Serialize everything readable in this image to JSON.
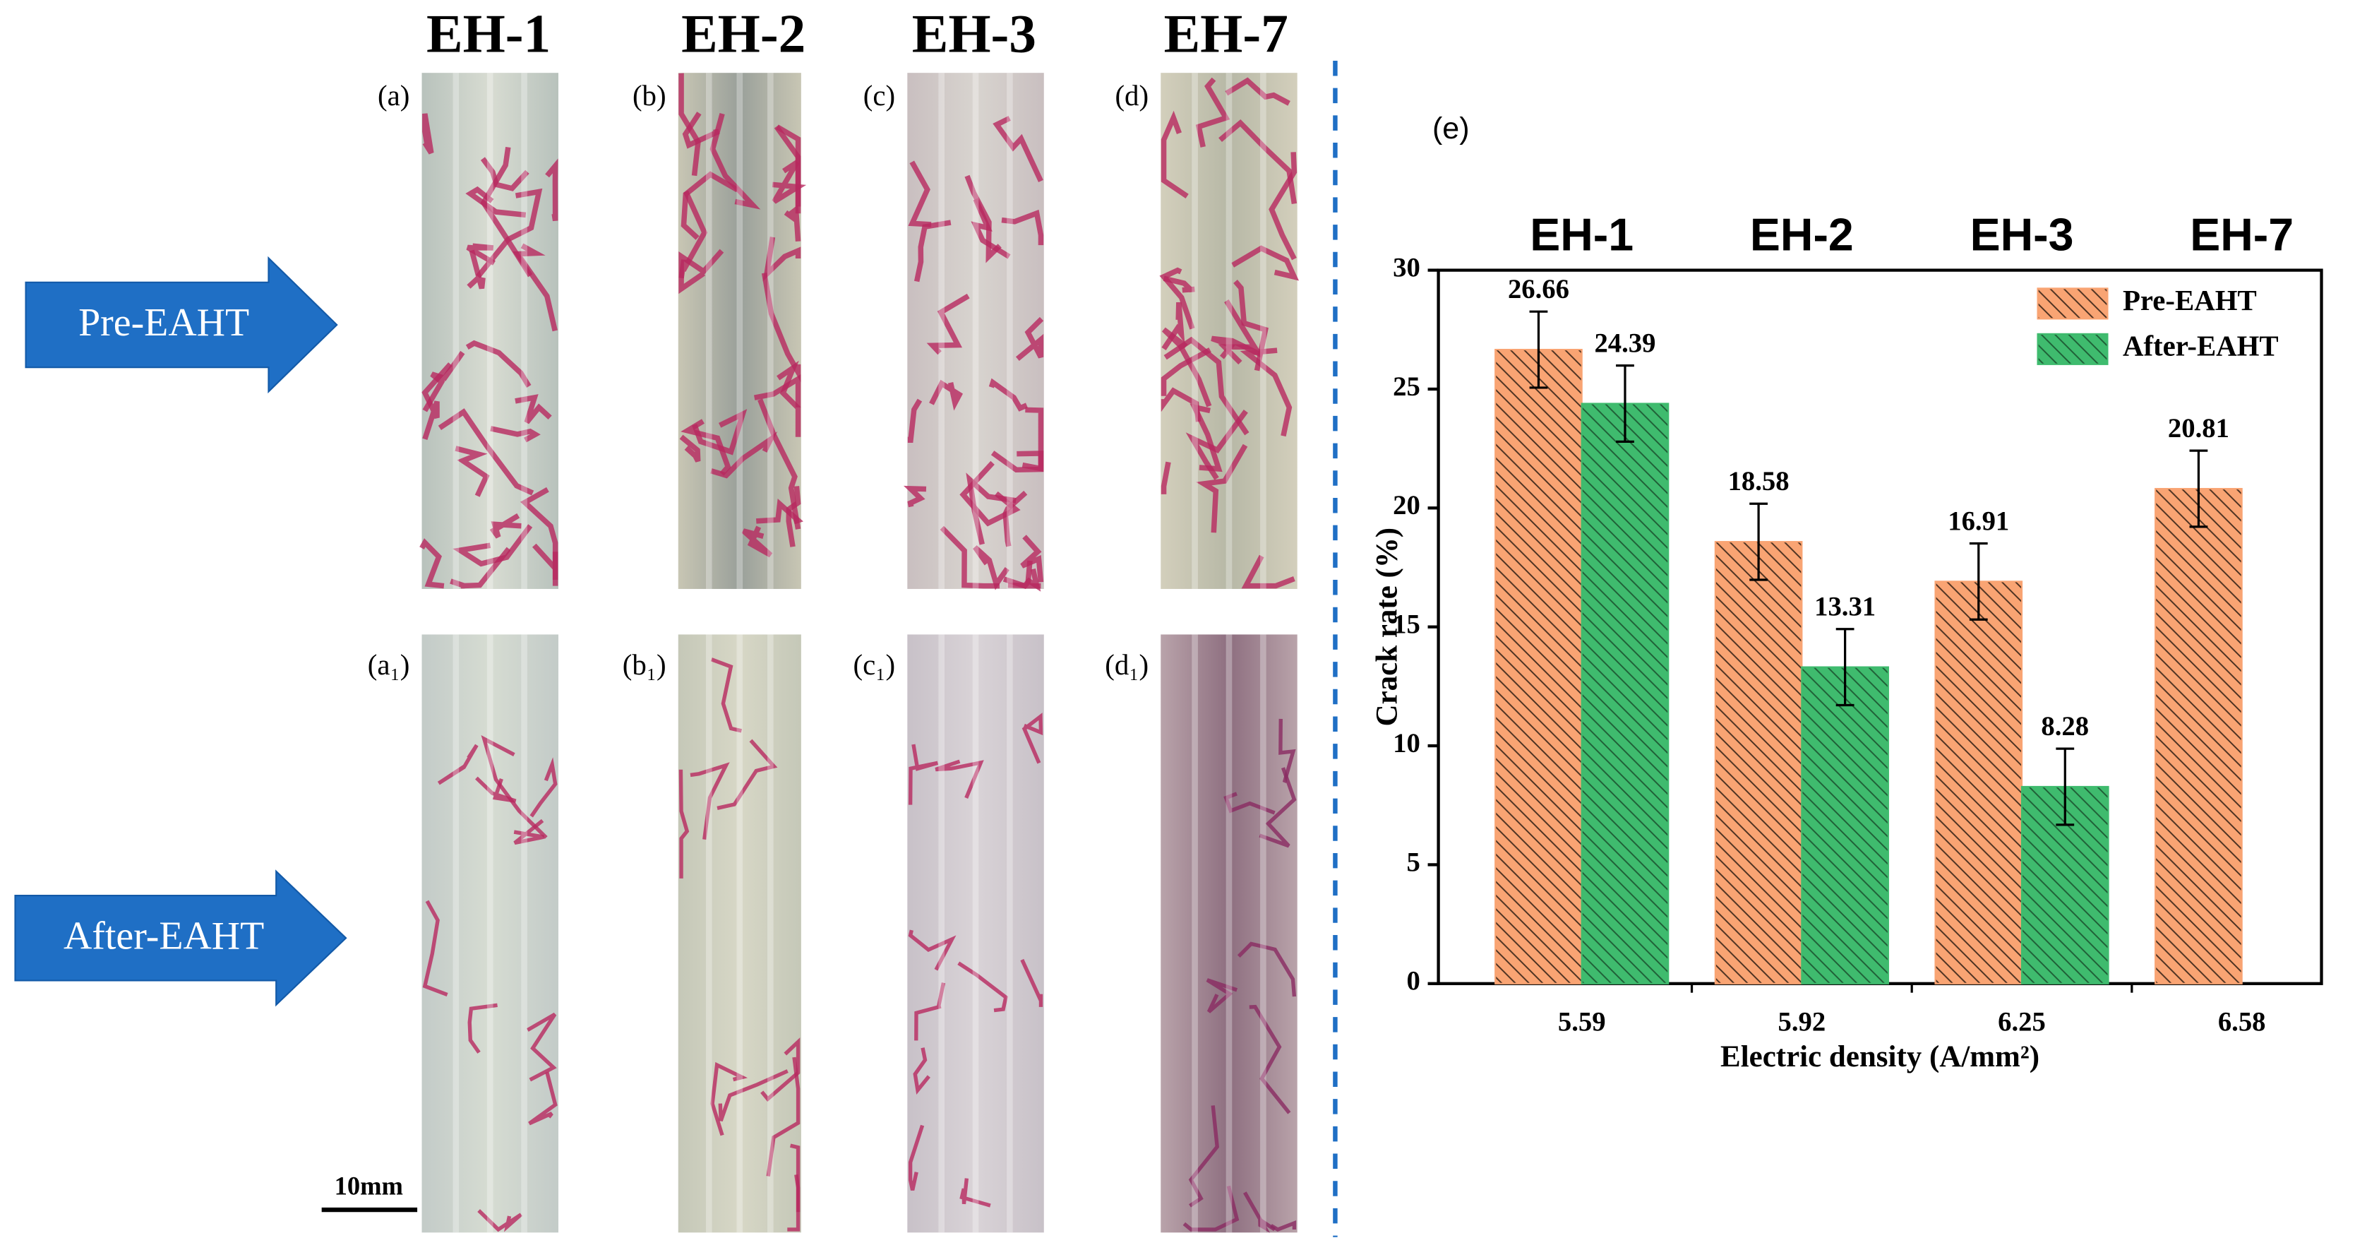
{
  "photos": {
    "columns": [
      "EH-1",
      "EH-2",
      "EH-3",
      "EH-7"
    ],
    "panel_labels": [
      "(a)",
      "(b)",
      "(c)",
      "(d)",
      "(a₁)",
      "(b₁)",
      "(c₁)",
      "(d₁)"
    ],
    "row_labels": [
      "Pre-EAHT",
      "After-EAHT"
    ],
    "scale_bar": "10mm"
  },
  "chart_data": {
    "type": "bar",
    "panel_label": "(e)",
    "group_labels": [
      "EH-1",
      "EH-2",
      "EH-3",
      "EH-7"
    ],
    "categories": [
      "5.59",
      "5.92",
      "6.25",
      "6.58"
    ],
    "series": [
      {
        "name": "Pre-EAHT",
        "color": "#f9a473",
        "values": [
          26.66,
          18.58,
          16.91,
          20.81
        ],
        "errors": [
          1.6,
          1.6,
          1.6,
          1.6
        ]
      },
      {
        "name": "After-EAHT",
        "color": "#3fbb6e",
        "values": [
          24.39,
          13.31,
          8.28,
          null
        ],
        "errors": [
          1.6,
          1.6,
          1.6,
          null
        ]
      }
    ],
    "x_label": "Electric density (A/mm²)",
    "y_label": "Crack rate (%)",
    "ylim": [
      0,
      30
    ],
    "yticks": [
      0,
      5,
      10,
      15,
      20,
      25,
      30
    ],
    "grid": false,
    "legend": "upper right"
  }
}
